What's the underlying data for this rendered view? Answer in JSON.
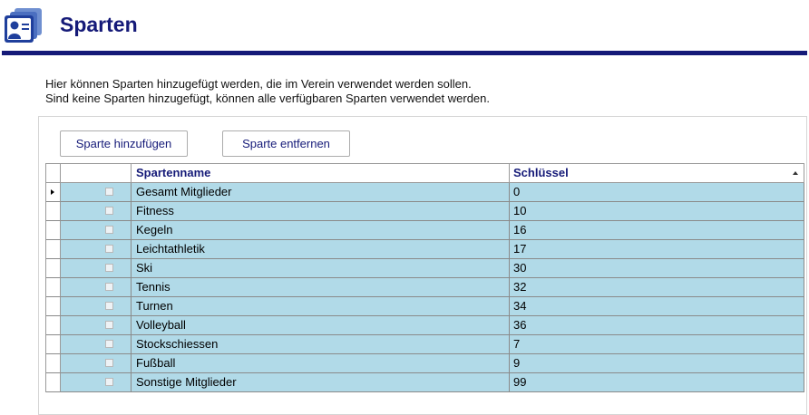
{
  "header": {
    "title": "Sparten",
    "logo_icon": "member-card-icon",
    "accent_color": "#151a78"
  },
  "intro": {
    "line1": "Hier können Sparten hinzugefügt werden, die im Verein verwendet werden sollen.",
    "line2": "Sind keine Sparten hinzugefügt, können alle verfügbaren Sparten verwendet werden."
  },
  "toolbar": {
    "add_label": "Sparte hinzufügen",
    "remove_label": "Sparte entfernen"
  },
  "grid": {
    "columns": {
      "name": "Spartenname",
      "key": "Schlüssel"
    },
    "sort": {
      "column": "key",
      "direction": "ascending"
    },
    "row_color": "#b1dae8",
    "rows": [
      {
        "name": "Gesamt Mitglieder",
        "key": "0",
        "checked": false,
        "current": true
      },
      {
        "name": "Fitness",
        "key": "10",
        "checked": false,
        "current": false
      },
      {
        "name": "Kegeln",
        "key": "16",
        "checked": false,
        "current": false
      },
      {
        "name": "Leichtathletik",
        "key": "17",
        "checked": false,
        "current": false
      },
      {
        "name": "Ski",
        "key": "30",
        "checked": false,
        "current": false
      },
      {
        "name": "Tennis",
        "key": "32",
        "checked": false,
        "current": false
      },
      {
        "name": "Turnen",
        "key": "34",
        "checked": false,
        "current": false
      },
      {
        "name": "Volleyball",
        "key": "36",
        "checked": false,
        "current": false
      },
      {
        "name": "Stockschiessen",
        "key": "7",
        "checked": false,
        "current": false
      },
      {
        "name": "Fußball",
        "key": "9",
        "checked": false,
        "current": false
      },
      {
        "name": "Sonstige Mitglieder",
        "key": "99",
        "checked": false,
        "current": false
      }
    ]
  }
}
